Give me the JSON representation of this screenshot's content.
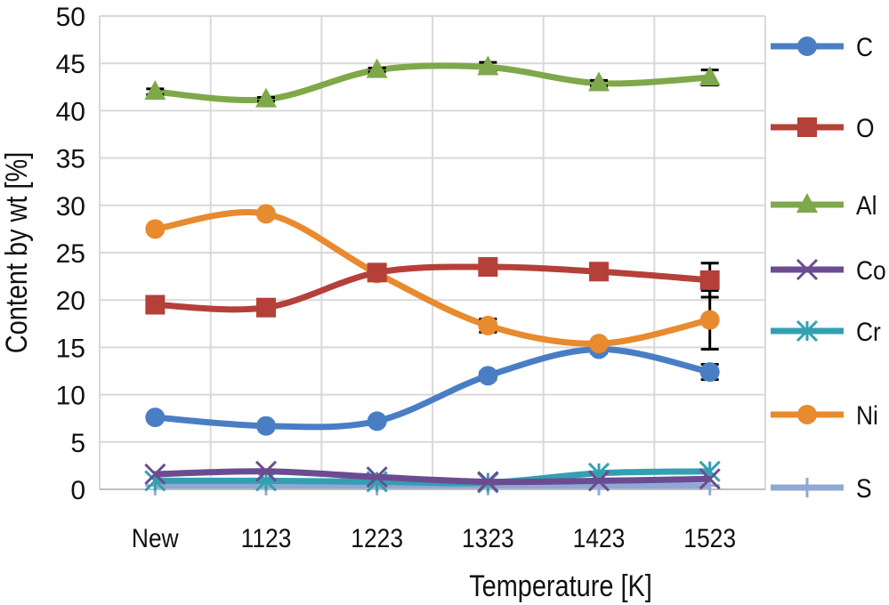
{
  "chart_data": {
    "type": "line",
    "title": "",
    "xlabel": "Temperature [K]",
    "ylabel": "Content by wt [%]",
    "ylim": [
      0,
      50
    ],
    "yticks": [
      0,
      5,
      10,
      15,
      20,
      25,
      30,
      35,
      40,
      45,
      50
    ],
    "categories": [
      "New",
      "1123",
      "1223",
      "1323",
      "1423",
      "1523"
    ],
    "grid": true,
    "legend": "right",
    "smooth": true,
    "series": [
      {
        "name": "C",
        "marker": "circle",
        "color": "#4a7ec4",
        "values": [
          7.6,
          6.7,
          7.2,
          12.0,
          14.8,
          12.4
        ],
        "errors": [
          0.2,
          0.2,
          0.2,
          0.4,
          0.4,
          0.8
        ]
      },
      {
        "name": "O",
        "marker": "square",
        "color": "#b5403a",
        "values": [
          19.5,
          19.2,
          22.9,
          23.5,
          23.0,
          22.1
        ],
        "errors": [
          0.3,
          0.3,
          0.3,
          0.3,
          0.3,
          1.8
        ]
      },
      {
        "name": "Al",
        "marker": "triangle",
        "color": "#7fa84a",
        "values": [
          42.0,
          41.2,
          44.3,
          44.6,
          42.9,
          43.5
        ],
        "errors": [
          0.3,
          0.2,
          0.2,
          0.5,
          0.3,
          0.8
        ]
      },
      {
        "name": "Co",
        "marker": "x",
        "color": "#6b4c92",
        "values": [
          1.6,
          1.9,
          1.3,
          0.8,
          0.9,
          1.1
        ],
        "errors": [
          0,
          0,
          0,
          0,
          0,
          0
        ]
      },
      {
        "name": "Cr",
        "marker": "star",
        "color": "#33a0b2",
        "values": [
          0.9,
          0.9,
          0.8,
          0.7,
          1.7,
          1.9
        ],
        "errors": [
          0,
          0,
          0,
          0,
          0,
          0
        ]
      },
      {
        "name": "Ni",
        "marker": "circle",
        "color": "#e88a2e",
        "values": [
          27.5,
          29.1,
          22.8,
          17.3,
          15.4,
          17.9
        ],
        "errors": [
          0.3,
          0.3,
          0.3,
          0.7,
          0.3,
          3.1
        ]
      },
      {
        "name": "S",
        "marker": "plus",
        "color": "#92a8d4",
        "values": [
          0.4,
          0.4,
          0.4,
          0.4,
          0.4,
          0.4
        ],
        "errors": [
          0,
          0,
          0,
          0,
          0,
          0
        ]
      }
    ]
  }
}
